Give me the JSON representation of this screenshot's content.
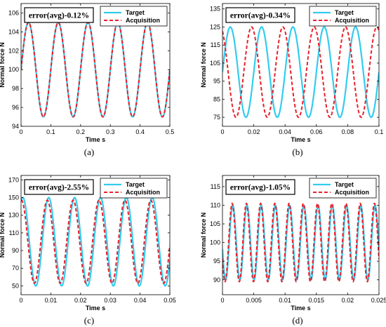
{
  "colors": {
    "target": "#33CCEE",
    "acquisition": "#E8212B",
    "axis": "#000000"
  },
  "chart_data": [
    {
      "type": "line",
      "panel_label": "(a)",
      "annotation": "error(avg)-0.12%",
      "xlabel": "Time s",
      "ylabel": "Normal force N",
      "xlim": [
        0,
        0.5
      ],
      "ylim": [
        94,
        107
      ],
      "xticks": [
        "0",
        "0.1",
        "0.2",
        "0.3",
        "0.4",
        "0.5"
      ],
      "yticks": [
        "94",
        "96",
        "98",
        "100",
        "102",
        "104",
        "106"
      ],
      "xtick_values": [
        0,
        0.1,
        0.2,
        0.3,
        0.4,
        0.5
      ],
      "ytick_values": [
        94,
        96,
        98,
        100,
        102,
        104,
        106
      ],
      "legend_position": "top-right",
      "series": [
        {
          "name": "Target",
          "style": "solid",
          "offset": 100,
          "amplitude": 5,
          "frequency_hz": 10,
          "phase_deg": 0
        },
        {
          "name": "Acquisition",
          "style": "dashed",
          "offset": 100,
          "amplitude": 5,
          "frequency_hz": 10,
          "phase_deg": 0
        }
      ]
    },
    {
      "type": "line",
      "panel_label": "(b)",
      "annotation": "error(avg)-0.34%",
      "xlabel": "Time s",
      "ylabel": "Normal force N",
      "xlim": [
        0,
        0.1
      ],
      "ylim": [
        70,
        138
      ],
      "xticks": [
        "0",
        "0.02",
        "0.04",
        "0.06",
        "0.08",
        "0.1"
      ],
      "yticks": [
        "75",
        "85",
        "95",
        "105",
        "115",
        "125",
        "135"
      ],
      "xtick_values": [
        0,
        0.02,
        0.04,
        0.06,
        0.08,
        0.1
      ],
      "ytick_values": [
        75,
        85,
        95,
        105,
        115,
        125,
        135
      ],
      "legend_position": "top-right",
      "series": [
        {
          "name": "Target",
          "style": "solid",
          "offset": 100,
          "amplitude": 25,
          "frequency_hz": 50,
          "phase_deg": 0
        },
        {
          "name": "Acquisition",
          "style": "dashed",
          "offset": 100,
          "amplitude": 25,
          "frequency_hz": 50,
          "phase_deg": 115
        }
      ]
    },
    {
      "type": "line",
      "panel_label": "(c)",
      "annotation": "error(avg)-2.55%",
      "xlabel": "Time s",
      "ylabel": "Normal force N",
      "xlim": [
        0,
        0.05
      ],
      "ylim": [
        40,
        175
      ],
      "xticks": [
        "0",
        "0.01",
        "0.02",
        "0.03",
        "0.04",
        "0.05"
      ],
      "yticks": [
        "50",
        "70",
        "90",
        "110",
        "130",
        "150",
        "170"
      ],
      "xtick_values": [
        0,
        0.01,
        0.02,
        0.03,
        0.04,
        0.05
      ],
      "ytick_values": [
        50,
        70,
        90,
        110,
        130,
        150,
        170
      ],
      "legend_position": "top-right",
      "series": [
        {
          "name": "Target",
          "style": "solid",
          "offset": 100,
          "amplitude": 50,
          "frequency_hz": 115,
          "phase_deg": 65
        },
        {
          "name": "Acquisition",
          "style": "dashed",
          "offset": 100,
          "amplitude": 47,
          "frequency_hz": 115,
          "phase_deg": 85
        }
      ]
    },
    {
      "type": "line",
      "panel_label": "(d)",
      "annotation": "error(avg)-1.05%",
      "xlabel": "Time s",
      "ylabel": "Normal force N",
      "xlim": [
        0,
        0.025
      ],
      "ylim": [
        86,
        118
      ],
      "xticks": [
        "0",
        "0.005",
        "0.01",
        "0.015",
        "0.02",
        "0.025"
      ],
      "yticks": [
        "90",
        "95",
        "100",
        "105",
        "110",
        "115"
      ],
      "xtick_values": [
        0,
        0.005,
        0.01,
        0.015,
        0.02,
        0.025
      ],
      "ytick_values": [
        90,
        95,
        100,
        105,
        110,
        115
      ],
      "legend_position": "top-right",
      "series": [
        {
          "name": "Target",
          "style": "solid",
          "offset": 100,
          "amplitude": 10,
          "frequency_hz": 440,
          "phase_deg": 190
        },
        {
          "name": "Acquisition",
          "style": "dashed",
          "offset": 100,
          "amplitude": 10.5,
          "frequency_hz": 440,
          "phase_deg": 205
        }
      ]
    }
  ]
}
